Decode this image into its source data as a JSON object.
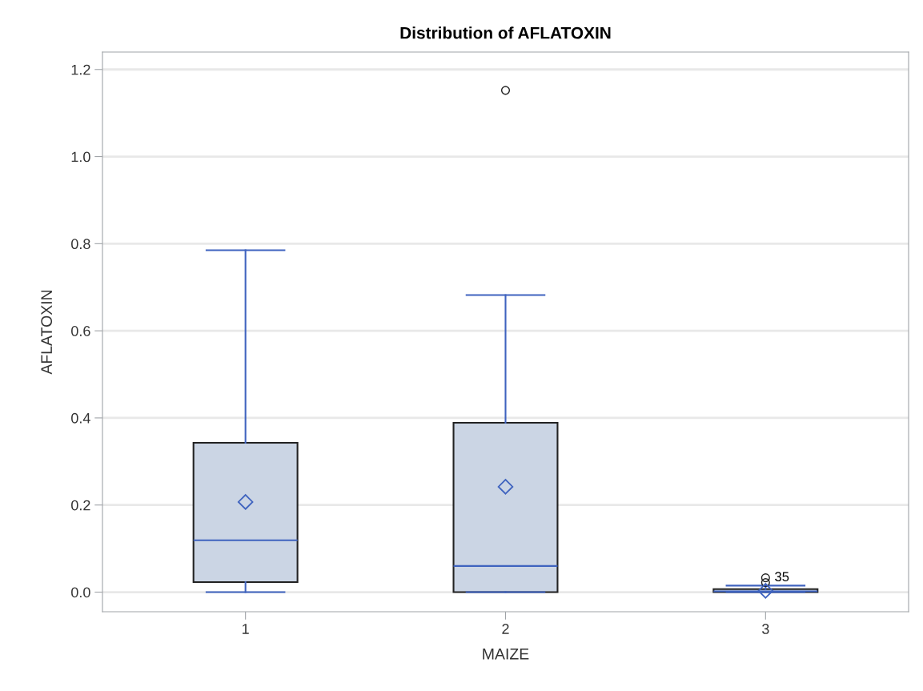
{
  "chart_data": {
    "type": "box",
    "title": "Distribution of AFLATOXIN",
    "xlabel": "MAIZE",
    "ylabel": "AFLATOXIN",
    "categories": [
      "1",
      "2",
      "3"
    ],
    "boxes": [
      {
        "low": 0,
        "q1": 0.023,
        "median": 0.119,
        "q3": 0.343,
        "high": 0.785,
        "mean": 0.207
      },
      {
        "low": 0,
        "q1": 0,
        "median": 0.06,
        "q3": 0.389,
        "high": 0.682,
        "mean": 0.242,
        "outliers": [
          1.152
        ]
      },
      {
        "low": 0,
        "q1": 0,
        "median": 0.002,
        "q3": 0.007,
        "high": 0.015,
        "mean": 0.003,
        "outliers": [
          0.022,
          0.033
        ]
      }
    ],
    "color": "#cbd5e4",
    "annotations": [
      "35"
    ],
    "ylim": [
      -0.045,
      1.24
    ],
    "yticks": [
      {
        "value": 0,
        "label": "0.0"
      },
      0.2,
      0.4,
      0.6,
      0.8,
      {
        "value": 1.0,
        "label": "1.0"
      },
      1.2
    ],
    "grid": "y",
    "marker": "diamond"
  }
}
